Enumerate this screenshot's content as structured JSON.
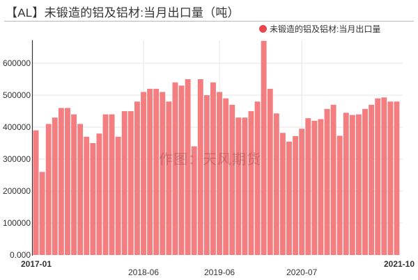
{
  "title": "【AL】未锻造的铝及铝材:当月出口量（吨）",
  "legend": {
    "label": "未锻造的铝及铝材:当月出口量",
    "color": "#e8454e"
  },
  "watermark": "作图：天风期货",
  "colors": {
    "bar": "#f47d80",
    "axis": "#333333",
    "grid": "#e6e6e6"
  },
  "chart_data": {
    "type": "bar",
    "title": "【AL】未锻造的铝及铝材:当月出口量（吨）",
    "xlabel": "",
    "ylabel": "",
    "ylim": [
      0,
      670000
    ],
    "grid": true,
    "legend_position": "top-right",
    "yticks": [
      "0.000",
      "100000",
      "200000",
      "300000",
      "400000",
      "500000",
      "600000"
    ],
    "xtick_labels": [
      {
        "label": "2017-01",
        "index": 0,
        "bold": true
      },
      {
        "label": "2018-06",
        "index": 17,
        "bold": false
      },
      {
        "label": "2019-06",
        "index": 29,
        "bold": false
      },
      {
        "label": "2020-07",
        "index": 42,
        "bold": false
      },
      {
        "label": "2021-10",
        "index": 57,
        "bold": true
      }
    ],
    "categories": [
      "2017-01",
      "2017-02",
      "2017-03",
      "2017-04",
      "2017-05",
      "2017-06",
      "2017-07",
      "2017-08",
      "2017-09",
      "2017-10",
      "2017-11",
      "2017-12",
      "2018-01",
      "2018-02",
      "2018-03",
      "2018-04",
      "2018-05",
      "2018-06",
      "2018-07",
      "2018-08",
      "2018-09",
      "2018-10",
      "2018-11",
      "2018-12",
      "2019-01",
      "2019-02",
      "2019-03",
      "2019-04",
      "2019-05",
      "2019-06",
      "2019-07",
      "2019-08",
      "2019-09",
      "2019-10",
      "2019-11",
      "2019-12",
      "2020-01",
      "2020-02",
      "2020-03",
      "2020-04",
      "2020-05",
      "2020-06",
      "2020-07",
      "2020-08",
      "2020-09",
      "2020-10",
      "2020-11",
      "2020-12",
      "2021-01",
      "2021-02",
      "2021-03",
      "2021-04",
      "2021-05",
      "2021-06",
      "2021-07",
      "2021-08",
      "2021-09",
      "2021-10"
    ],
    "series": [
      {
        "name": "未锻造的铝及铝材:当月出口量",
        "values": [
          390000,
          260000,
          410000,
          430000,
          460000,
          460000,
          440000,
          410000,
          370000,
          350000,
          380000,
          440000,
          440000,
          370000,
          450000,
          450000,
          480000,
          510000,
          520000,
          520000,
          510000,
          480000,
          540000,
          530000,
          550000,
          340000,
          550000,
          500000,
          540000,
          510000,
          490000,
          470000,
          430000,
          430000,
          450000,
          480000,
          670000,
          520000,
          443000,
          382000,
          355000,
          372000,
          395000,
          428000,
          420000,
          425000,
          457000,
          470000,
          373000,
          445000,
          438000,
          440000,
          457000,
          470000,
          490000,
          493000,
          480000,
          480000
        ]
      }
    ]
  }
}
